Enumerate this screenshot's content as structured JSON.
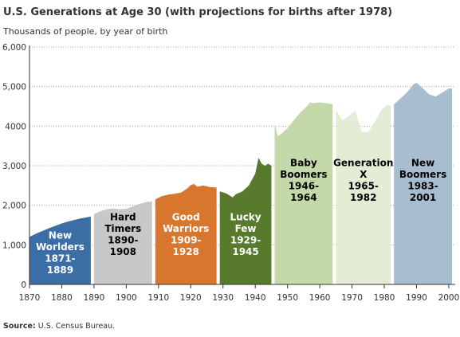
{
  "title": "U.S. Generations at Age 30 (with projections for births after 1978)",
  "subtitle": "Thousands of people, by year of birth",
  "source": {
    "label": "Source:",
    "text": " U.S. Census Bureau."
  },
  "chart_data": {
    "type": "area",
    "title": "U.S. Generations at Age 30 (with projections for births after 1978)",
    "ylabel": "Thousands of people, by year of birth",
    "xlim": [
      1870,
      2001
    ],
    "ylim": [
      0,
      6000
    ],
    "grid": true,
    "x_ticks": [
      "1870",
      "1880",
      "1890",
      "1900",
      "1910",
      "1920",
      "1930",
      "1940",
      "1950",
      "1960",
      "1970",
      "1980",
      "1990",
      "2000"
    ],
    "y_ticks": [
      "0",
      "1,000",
      "2,000",
      "3,000",
      "4000",
      "5,000",
      "6,000"
    ],
    "series": [
      {
        "name": "New Worlders 1871-1889",
        "color": "#3a6ea5",
        "label_lines": [
          "New",
          "Worlders",
          "1871-",
          "1889"
        ],
        "x": [
          1870,
          1872,
          1874,
          1876,
          1878,
          1880,
          1882,
          1884,
          1886,
          1888,
          1889
        ],
        "y": [
          1200,
          1280,
          1350,
          1420,
          1480,
          1540,
          1590,
          1630,
          1670,
          1700,
          1720
        ]
      },
      {
        "name": "Hard Timers 1890-1908",
        "color": "#c8c8c8",
        "label_lines": [
          "Hard",
          "Timers",
          "1890-",
          "1908"
        ],
        "x": [
          1890,
          1892,
          1894,
          1896,
          1898,
          1900,
          1902,
          1904,
          1906,
          1908
        ],
        "y": [
          1780,
          1850,
          1900,
          1920,
          1900,
          1910,
          1970,
          2030,
          2080,
          2100
        ]
      },
      {
        "name": "Good Warriors 1909-1928",
        "color": "#d9762e",
        "label_lines": [
          "Good",
          "Warriors",
          "1909-",
          "1928"
        ],
        "x": [
          1909,
          1911,
          1913,
          1915,
          1917,
          1919,
          1920,
          1921,
          1922,
          1924,
          1926,
          1928
        ],
        "y": [
          2150,
          2230,
          2270,
          2290,
          2320,
          2430,
          2510,
          2540,
          2470,
          2500,
          2460,
          2450
        ]
      },
      {
        "name": "Lucky Few 1929-1945",
        "color": "#587a2c",
        "label_lines": [
          "Lucky",
          "Few",
          "1929-",
          "1945"
        ],
        "x": [
          1929,
          1931,
          1933,
          1934,
          1936,
          1938,
          1940,
          1941,
          1942,
          1943,
          1944,
          1945
        ],
        "y": [
          2350,
          2300,
          2200,
          2280,
          2350,
          2500,
          2800,
          3200,
          3050,
          3000,
          3050,
          3000
        ]
      },
      {
        "name": "Baby Boomers 1946-1964",
        "color": "#c4d9a9",
        "label_lines": [
          "Baby",
          "Boomers",
          "1946-",
          "1964"
        ],
        "x": [
          1946,
          1947,
          1948,
          1950,
          1952,
          1954,
          1956,
          1957,
          1958,
          1960,
          1962,
          1964
        ],
        "y": [
          4050,
          3750,
          3800,
          3950,
          4150,
          4350,
          4500,
          4600,
          4580,
          4600,
          4580,
          4550
        ]
      },
      {
        "name": "Generation X 1965-1982",
        "color": "#e3edd6",
        "label_lines": [
          "Generation",
          "X",
          "1965-",
          "1982"
        ],
        "x": [
          1965,
          1967,
          1969,
          1971,
          1973,
          1975,
          1977,
          1979,
          1981,
          1982
        ],
        "y": [
          4400,
          4150,
          4250,
          4400,
          3850,
          3850,
          4100,
          4400,
          4550,
          4500
        ]
      },
      {
        "name": "New Boomers 1983-2001",
        "color": "#a9bdd0",
        "label_lines": [
          "New",
          "Boomers",
          "1983-",
          "2001"
        ],
        "x": [
          1983,
          1985,
          1987,
          1989,
          1990,
          1992,
          1994,
          1996,
          1998,
          2000,
          2001
        ],
        "y": [
          4550,
          4700,
          4850,
          5050,
          5100,
          4950,
          4800,
          4750,
          4850,
          4950,
          4950
        ]
      }
    ]
  }
}
